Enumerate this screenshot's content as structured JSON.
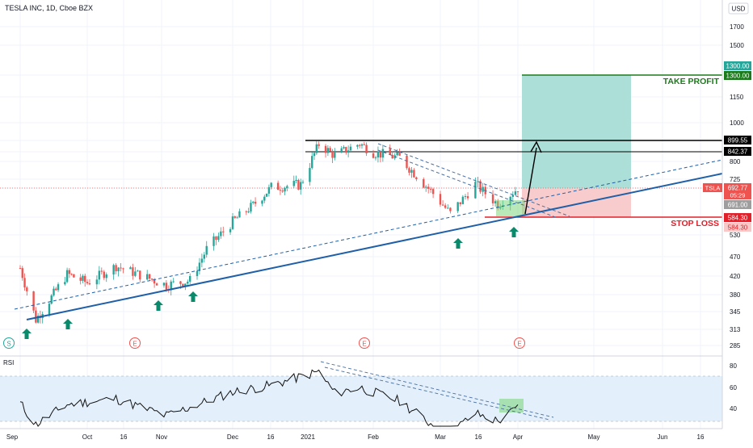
{
  "header": {
    "title": "TESLA INC, 1D, Cboe BZX",
    "currency": "USD"
  },
  "price_axis": {
    "ticks": [
      "1700",
      "1500",
      "1150",
      "1000",
      "800",
      "725",
      "530",
      "470",
      "420",
      "380",
      "345",
      "313",
      "285"
    ],
    "labels": {
      "tp_top": "1300.00",
      "tp": "1300.00",
      "r1": "899.55",
      "r2": "842.37",
      "symbol": "TSLA",
      "last": "692.77",
      "countdown": "05:29",
      "prev": "691.00",
      "sl_top": "584.30",
      "sl": "584.30"
    }
  },
  "time_axis": {
    "labels": [
      "Sep",
      "Oct",
      "16",
      "Nov",
      "Dec",
      "16",
      "2021",
      "Feb",
      "Mar",
      "16",
      "Apr",
      "May",
      "Jun",
      "16"
    ]
  },
  "annotations": {
    "take_profit": "TAKE PROFIT",
    "stop_loss": "STOP LOSS"
  },
  "event_markers": [
    "S",
    "E",
    "E",
    "E"
  ],
  "rsi": {
    "label": "RSI",
    "ticks": [
      "80",
      "60",
      "40"
    ]
  },
  "colors": {
    "bull": "#26a69a",
    "bear": "#ef5350",
    "trend": "#1f5fa8",
    "tp_zone": "#a8ddd6",
    "sl_zone": "#f8c9c9",
    "tp_line": "#1b7a1b",
    "sl_line": "#e0202a",
    "rsi_band": "#e3f0fc"
  },
  "chart_data": {
    "type": "candlestick",
    "title": "TESLA INC, 1D, Cboe BZX",
    "x_range": [
      "2020-09-01",
      "2021-06-30"
    ],
    "y_scale": "log",
    "ylim": [
      270,
      1800
    ],
    "levels": {
      "take_profit": 1300.0,
      "resistance_1": 899.55,
      "resistance_2": 842.37,
      "last_price": 692.77,
      "previous_close": 691.0,
      "stop_loss": 584.3
    },
    "anchors": [
      {
        "date": "2020-09-01",
        "close": 440
      },
      {
        "date": "2020-09-08",
        "close": 330
      },
      {
        "date": "2020-09-22",
        "close": 425
      },
      {
        "date": "2020-10-01",
        "close": 405
      },
      {
        "date": "2020-10-13",
        "close": 445
      },
      {
        "date": "2020-10-22",
        "close": 425
      },
      {
        "date": "2020-11-03",
        "close": 400
      },
      {
        "date": "2020-11-13",
        "close": 410
      },
      {
        "date": "2020-11-20",
        "close": 490
      },
      {
        "date": "2020-12-01",
        "close": 570
      },
      {
        "date": "2020-12-10",
        "close": 627
      },
      {
        "date": "2020-12-18",
        "close": 695
      },
      {
        "date": "2020-12-31",
        "close": 705
      },
      {
        "date": "2021-01-08",
        "close": 880
      },
      {
        "date": "2021-01-15",
        "close": 826
      },
      {
        "date": "2021-01-26",
        "close": 883
      },
      {
        "date": "2021-02-01",
        "close": 840
      },
      {
        "date": "2021-02-12",
        "close": 816
      },
      {
        "date": "2021-02-25",
        "close": 682
      },
      {
        "date": "2021-03-05",
        "close": 597
      },
      {
        "date": "2021-03-15",
        "close": 707
      },
      {
        "date": "2021-03-24",
        "close": 630
      },
      {
        "date": "2021-04-01",
        "close": 692
      }
    ],
    "rsi": {
      "ylim": [
        20,
        85
      ],
      "anchors": [
        {
          "date": "2020-09-01",
          "value": 56
        },
        {
          "date": "2020-09-08",
          "value": 37
        },
        {
          "date": "2020-09-22",
          "value": 55
        },
        {
          "date": "2020-10-13",
          "value": 60
        },
        {
          "date": "2020-11-03",
          "value": 45
        },
        {
          "date": "2020-12-01",
          "value": 66
        },
        {
          "date": "2020-12-18",
          "value": 72
        },
        {
          "date": "2021-01-08",
          "value": 84
        },
        {
          "date": "2021-01-15",
          "value": 65
        },
        {
          "date": "2021-01-26",
          "value": 70
        },
        {
          "date": "2021-02-12",
          "value": 58
        },
        {
          "date": "2021-02-25",
          "value": 38
        },
        {
          "date": "2021-03-05",
          "value": 30
        },
        {
          "date": "2021-03-15",
          "value": 47
        },
        {
          "date": "2021-03-24",
          "value": 40
        },
        {
          "date": "2021-04-01",
          "value": 52
        }
      ]
    }
  }
}
